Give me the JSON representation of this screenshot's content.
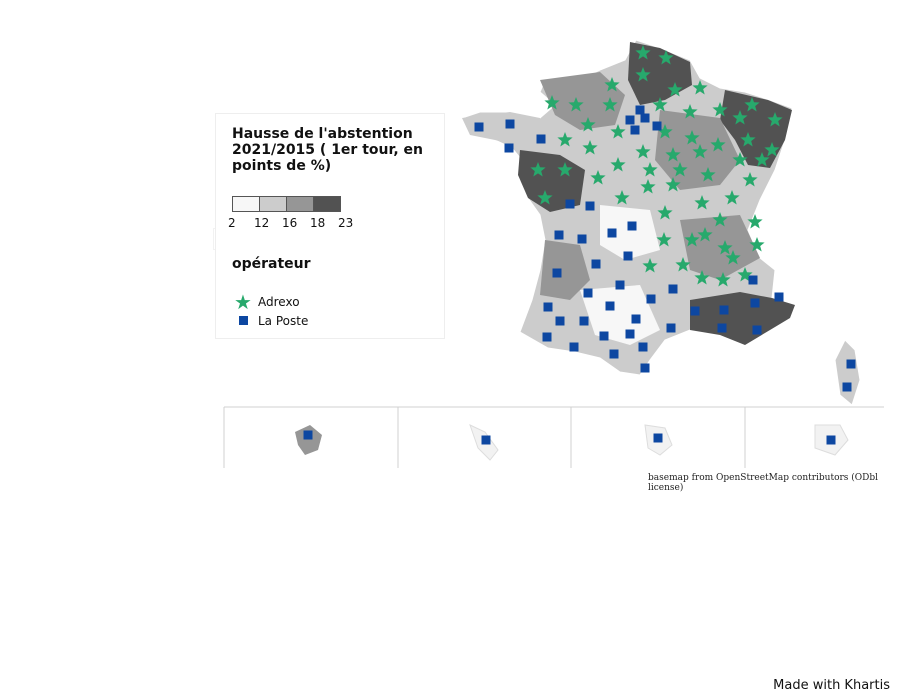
{
  "legend": {
    "title": "Hausse de l'abstention 2021/2015 ( 1er tour, en points de %)",
    "scale_colors": [
      "#f7f7f7",
      "#cccccc",
      "#969696",
      "#525252"
    ],
    "scale_ticks": [
      "2",
      "12",
      "16",
      "18",
      "23"
    ],
    "operator_title": "opérateur",
    "operators": [
      {
        "label": "Adrexo",
        "symbol": "star-icon",
        "color": "#27a96c"
      },
      {
        "label": "La Poste",
        "symbol": "square-icon",
        "color": "#0d47a1"
      }
    ]
  },
  "credit": "basemap from OpenStreetMap contributors (ODbl license)",
  "made_with": "Made with Khartis"
}
